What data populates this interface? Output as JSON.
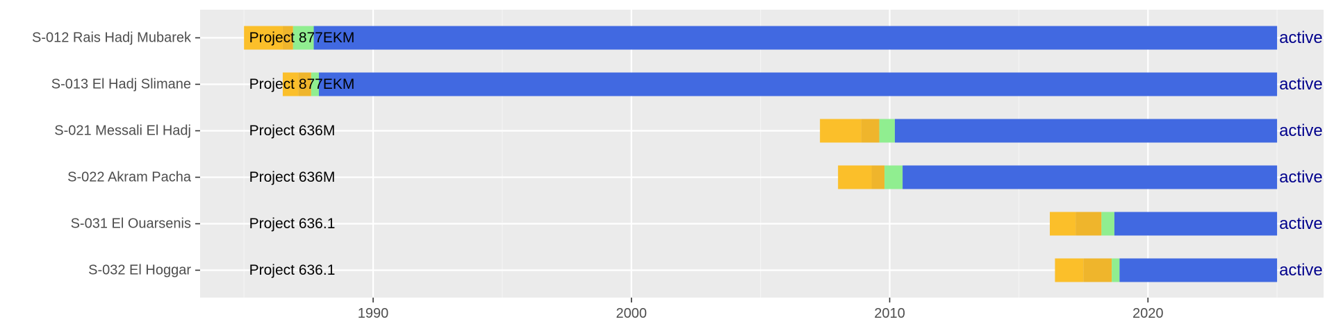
{
  "chart_data": {
    "type": "bar",
    "subtype": "timeline-gantt",
    "title": "",
    "xlabel": "",
    "ylabel": "",
    "xlim": [
      1983.3,
      2026.8
    ],
    "x_ticks": [
      1990,
      2000,
      2010,
      2020
    ],
    "x_tick_labels": [
      "1990",
      "2000",
      "2010",
      "2020"
    ],
    "grid": true,
    "legend": "none",
    "colors": {
      "panel": "#ebebeb",
      "grid_major": "#ffffff",
      "grid_minor": "#f4f4f4",
      "phase_1": "#fbbf2a",
      "phase_2": "#efb52c",
      "phase_3": "#90ee90",
      "phase_4": "#4169e1",
      "project_label": "#000000",
      "status_label": "#00008b",
      "axis_text": "#4d4d4d"
    },
    "project_label_x": 1985.2,
    "status_label_x": 2025.08,
    "series": [
      {
        "category": "S-012 Rais Hadj Mubarek",
        "project": "Project 877EKM",
        "status": "active",
        "segments": [
          {
            "phase": "phase_1",
            "start": 1985.0,
            "end": 1986.5
          },
          {
            "phase": "phase_2",
            "start": 1986.5,
            "end": 1986.9
          },
          {
            "phase": "phase_3",
            "start": 1986.9,
            "end": 1987.7
          },
          {
            "phase": "phase_4",
            "start": 1987.7,
            "end": 2025.0
          }
        ]
      },
      {
        "category": "S-013 El Hadj Slimane",
        "project": "Project 877EKM",
        "status": "active",
        "segments": [
          {
            "phase": "phase_1",
            "start": 1986.5,
            "end": 1987.1
          },
          {
            "phase": "phase_2",
            "start": 1987.1,
            "end": 1987.6
          },
          {
            "phase": "phase_3",
            "start": 1987.6,
            "end": 1987.9
          },
          {
            "phase": "phase_4",
            "start": 1987.9,
            "end": 2025.0
          }
        ]
      },
      {
        "category": "S-021 Messali El Hadj",
        "project": "Project 636M",
        "status": "active",
        "segments": [
          {
            "phase": "phase_1",
            "start": 2007.3,
            "end": 2008.9
          },
          {
            "phase": "phase_2",
            "start": 2008.9,
            "end": 2009.6
          },
          {
            "phase": "phase_3",
            "start": 2009.6,
            "end": 2010.2
          },
          {
            "phase": "phase_4",
            "start": 2010.2,
            "end": 2025.0
          }
        ]
      },
      {
        "category": "S-022 Akram Pacha",
        "project": "Project 636M",
        "status": "active",
        "segments": [
          {
            "phase": "phase_1",
            "start": 2008.0,
            "end": 2009.3
          },
          {
            "phase": "phase_2",
            "start": 2009.3,
            "end": 2009.8
          },
          {
            "phase": "phase_3",
            "start": 2009.8,
            "end": 2010.5
          },
          {
            "phase": "phase_4",
            "start": 2010.5,
            "end": 2025.0
          }
        ]
      },
      {
        "category": "S-031 El Ouarsenis",
        "project": "Project 636.1",
        "status": "active",
        "segments": [
          {
            "phase": "phase_1",
            "start": 2016.2,
            "end": 2017.2
          },
          {
            "phase": "phase_2",
            "start": 2017.2,
            "end": 2018.2
          },
          {
            "phase": "phase_3",
            "start": 2018.2,
            "end": 2018.7
          },
          {
            "phase": "phase_4",
            "start": 2018.7,
            "end": 2025.0
          }
        ]
      },
      {
        "category": "S-032 El Hoggar",
        "project": "Project 636.1",
        "status": "active",
        "segments": [
          {
            "phase": "phase_1",
            "start": 2016.4,
            "end": 2017.5
          },
          {
            "phase": "phase_2",
            "start": 2017.5,
            "end": 2018.6
          },
          {
            "phase": "phase_3",
            "start": 2018.6,
            "end": 2018.9
          },
          {
            "phase": "phase_4",
            "start": 2018.9,
            "end": 2025.0
          }
        ]
      }
    ]
  }
}
